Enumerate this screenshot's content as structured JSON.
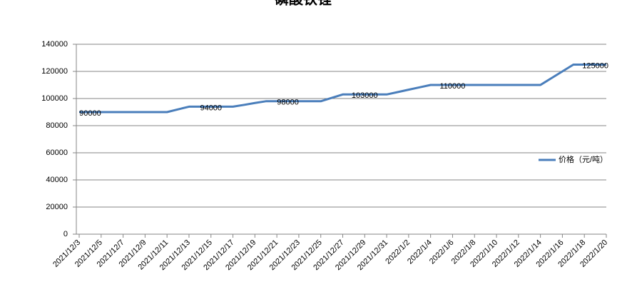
{
  "chart_data": {
    "type": "line",
    "title": "磷酸铁锂",
    "categories": [
      "2021/12/3",
      null,
      "2021/12/5",
      null,
      "2021/12/7",
      null,
      "2021/12/9",
      null,
      "2021/12/11",
      null,
      "2021/12/13",
      null,
      "2021/12/15",
      null,
      "2021/12/17",
      null,
      "2021/12/19",
      null,
      "2021/12/21",
      null,
      "2021/12/23",
      null,
      "2021/12/25",
      null,
      "2021/12/27",
      null,
      "2021/12/29",
      null,
      "2021/12/31",
      null,
      "2022/1/2",
      null,
      "2022/1/4",
      null,
      "2022/1/6",
      null,
      "2022/1/8",
      null,
      "2022/1/10",
      null,
      "2022/1/12",
      null,
      "2022/1/14",
      null,
      "2022/1/16",
      null,
      "2022/1/18",
      null,
      "2022/1/20"
    ],
    "series": [
      {
        "name": "价格（元/吨）",
        "color": "#4a7ebb",
        "values": [
          90000,
          90000,
          90000,
          90000,
          90000,
          90000,
          90000,
          90000,
          90000,
          92000,
          94000,
          94000,
          94000,
          94000,
          94000,
          95300,
          96700,
          98000,
          98000,
          98000,
          98000,
          98000,
          98000,
          100500,
          103000,
          103000,
          103000,
          103000,
          103000,
          104750,
          106500,
          108250,
          110000,
          110000,
          110000,
          110000,
          110000,
          110000,
          110000,
          110000,
          110000,
          110000,
          110000,
          115000,
          120000,
          125000,
          125000,
          125000,
          125000
        ],
        "value_labels": [
          null,
          "90000",
          null,
          null,
          null,
          null,
          null,
          null,
          null,
          null,
          null,
          null,
          "94000",
          null,
          null,
          null,
          null,
          null,
          null,
          "98000",
          null,
          null,
          null,
          null,
          null,
          null,
          "103000",
          null,
          null,
          null,
          null,
          null,
          null,
          null,
          "110000",
          null,
          null,
          null,
          null,
          null,
          null,
          null,
          null,
          null,
          null,
          null,
          null,
          "125000",
          null
        ]
      }
    ],
    "ylim": [
      0,
      140000
    ],
    "yticks": [
      0,
      20000,
      40000,
      60000,
      80000,
      100000,
      120000,
      140000
    ],
    "grid": true,
    "legend": "right"
  }
}
